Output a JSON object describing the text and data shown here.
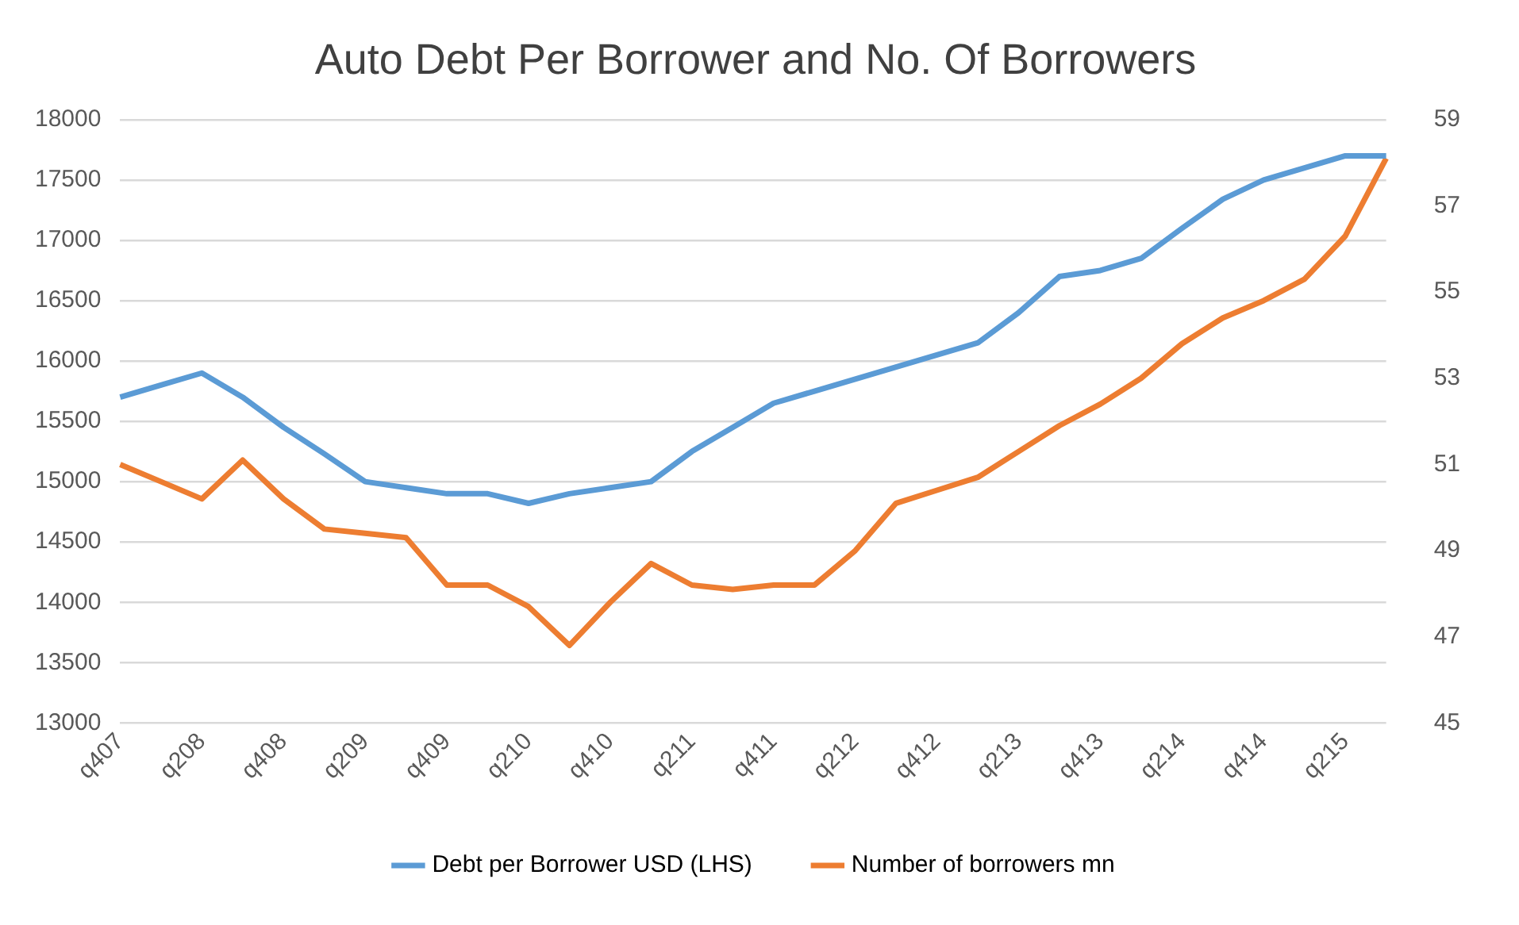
{
  "chart_data": {
    "type": "line",
    "title": "Auto Debt Per Borrower and No. Of Borrowers",
    "categories": [
      "q407",
      null,
      "q208",
      null,
      "q408",
      null,
      "q209",
      null,
      "q409",
      null,
      "q210",
      null,
      "q410",
      null,
      "q211",
      null,
      "q411",
      null,
      "q212",
      null,
      "q412",
      null,
      "q213",
      null,
      "q413",
      null,
      "q214",
      null,
      "q414",
      null,
      "q215",
      null
    ],
    "series": [
      {
        "name": "Debt per Borrower USD (LHS)",
        "color": "#5b9bd5",
        "values": [
          15700,
          15800,
          15900,
          15700,
          15450,
          15230,
          15000,
          14950,
          14900,
          14900,
          14820,
          14900,
          14950,
          15000,
          15250,
          15450,
          15650,
          15750,
          15850,
          15950,
          16050,
          16150,
          16400,
          16700,
          16750,
          16850,
          17100,
          17340,
          17500,
          17600,
          17700,
          17700
        ]
      },
      {
        "name": "Number of borrowers mn",
        "color": "#ed7d31",
        "axis": "y2",
        "values": [
          51.0,
          50.6,
          50.2,
          51.1,
          50.2,
          49.5,
          49.4,
          49.3,
          48.2,
          48.2,
          47.7,
          46.8,
          47.8,
          48.7,
          48.2,
          48.1,
          48.2,
          48.2,
          49.0,
          50.1,
          50.4,
          50.7,
          51.3,
          51.9,
          52.4,
          53.0,
          53.8,
          54.4,
          54.8,
          55.3,
          56.3,
          58.1
        ]
      }
    ],
    "ylim": [
      13000,
      18000
    ],
    "yticks": [
      13000,
      13500,
      14000,
      14500,
      15000,
      15500,
      16000,
      16500,
      17000,
      17500,
      18000
    ],
    "y2lim": [
      45,
      59
    ],
    "y2ticks": [
      45,
      47,
      49,
      51,
      53,
      55,
      57,
      59
    ],
    "grid": "y",
    "legend": "bottom",
    "marker": "none",
    "line_style": "solid"
  }
}
